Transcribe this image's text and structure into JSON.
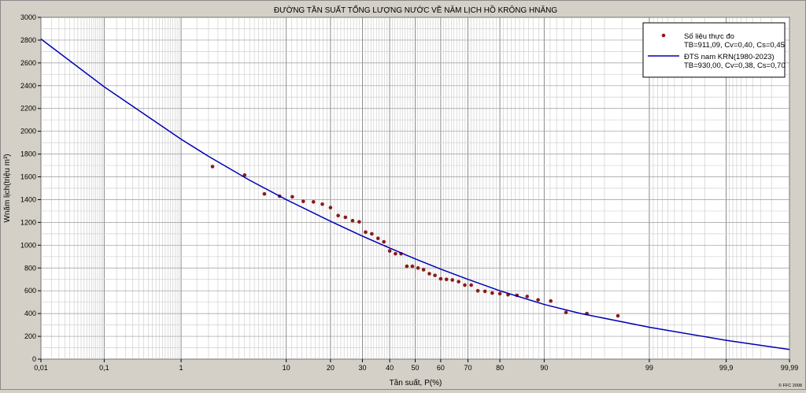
{
  "chart_data": {
    "type": "scatter",
    "title": "ĐƯỜNG TẦN SUẤT TỔNG LƯỢNG NƯỚC VỀ NĂM LỊCH HỒ KRÔNG HNĂNG",
    "xlabel": "Tần suất, P(%)",
    "ylabel": "Wnăm lịch(triệu m³)",
    "x_scale": "probability",
    "xlim": [
      0.01,
      99.99
    ],
    "ylim": [
      0,
      3000
    ],
    "x_tick_labels": [
      "0,01",
      "0,1",
      "1",
      "10",
      "20",
      "30",
      "40",
      "50",
      "60",
      "70",
      "80",
      "90",
      "99",
      "99,9",
      "99,99"
    ],
    "x_tick_values": [
      0.01,
      0.1,
      1,
      10,
      20,
      30,
      40,
      50,
      60,
      70,
      80,
      90,
      99,
      99.9,
      99.99
    ],
    "y_tick_labels": [
      "0",
      "200",
      "400",
      "600",
      "800",
      "1000",
      "1200",
      "1400",
      "1600",
      "1800",
      "2000",
      "2200",
      "2400",
      "2600",
      "2800",
      "3000"
    ],
    "y_tick_values": [
      0,
      200,
      400,
      600,
      800,
      1000,
      1200,
      1400,
      1600,
      1800,
      2000,
      2200,
      2400,
      2600,
      2800,
      3000
    ],
    "grid": true,
    "legend_position": "top-right",
    "copyright": "© FFC 2008",
    "series": [
      {
        "name": "Số liệu thực đo",
        "params": "TB=911,09, Cv=0,40, Cs=0,45",
        "kind": "scatter",
        "color": "#8b1a1a",
        "points": [
          {
            "x": 2.2,
            "y": 1690
          },
          {
            "x": 4.5,
            "y": 1615
          },
          {
            "x": 6.7,
            "y": 1450
          },
          {
            "x": 8.9,
            "y": 1430
          },
          {
            "x": 11.1,
            "y": 1425
          },
          {
            "x": 13.3,
            "y": 1385
          },
          {
            "x": 15.6,
            "y": 1380
          },
          {
            "x": 17.8,
            "y": 1360
          },
          {
            "x": 20,
            "y": 1330
          },
          {
            "x": 22.2,
            "y": 1260
          },
          {
            "x": 24.4,
            "y": 1245
          },
          {
            "x": 26.7,
            "y": 1215
          },
          {
            "x": 28.9,
            "y": 1205
          },
          {
            "x": 31.1,
            "y": 1115
          },
          {
            "x": 33.3,
            "y": 1100
          },
          {
            "x": 35.6,
            "y": 1060
          },
          {
            "x": 37.8,
            "y": 1030
          },
          {
            "x": 40,
            "y": 950
          },
          {
            "x": 42.2,
            "y": 925
          },
          {
            "x": 44.4,
            "y": 925
          },
          {
            "x": 46.7,
            "y": 815
          },
          {
            "x": 48.9,
            "y": 815
          },
          {
            "x": 51.1,
            "y": 800
          },
          {
            "x": 53.3,
            "y": 785
          },
          {
            "x": 55.6,
            "y": 750
          },
          {
            "x": 57.8,
            "y": 735
          },
          {
            "x": 60,
            "y": 705
          },
          {
            "x": 62.2,
            "y": 700
          },
          {
            "x": 64.4,
            "y": 695
          },
          {
            "x": 66.7,
            "y": 680
          },
          {
            "x": 68.9,
            "y": 650
          },
          {
            "x": 71.1,
            "y": 650
          },
          {
            "x": 73.3,
            "y": 600
          },
          {
            "x": 75.6,
            "y": 595
          },
          {
            "x": 77.8,
            "y": 580
          },
          {
            "x": 80,
            "y": 575
          },
          {
            "x": 82.2,
            "y": 565
          },
          {
            "x": 84.4,
            "y": 560
          },
          {
            "x": 86.7,
            "y": 550
          },
          {
            "x": 88.9,
            "y": 520
          },
          {
            "x": 91.1,
            "y": 510
          },
          {
            "x": 93.3,
            "y": 410
          },
          {
            "x": 95.6,
            "y": 400
          },
          {
            "x": 97.8,
            "y": 380
          }
        ]
      },
      {
        "name": "ĐTS nam KRN(1980-2023)",
        "params": "TB=930,00, Cv=0,38, Cs=0,70",
        "kind": "line",
        "color": "#0000b4",
        "points": [
          {
            "x": 0.01,
            "y": 2810
          },
          {
            "x": 0.1,
            "y": 2390
          },
          {
            "x": 1,
            "y": 1930
          },
          {
            "x": 2,
            "y": 1780
          },
          {
            "x": 5,
            "y": 1570
          },
          {
            "x": 10,
            "y": 1400
          },
          {
            "x": 20,
            "y": 1210
          },
          {
            "x": 30,
            "y": 1080
          },
          {
            "x": 40,
            "y": 975
          },
          {
            "x": 50,
            "y": 880
          },
          {
            "x": 60,
            "y": 790
          },
          {
            "x": 70,
            "y": 700
          },
          {
            "x": 80,
            "y": 600
          },
          {
            "x": 90,
            "y": 480
          },
          {
            "x": 95,
            "y": 400
          },
          {
            "x": 99,
            "y": 280
          },
          {
            "x": 99.9,
            "y": 165
          },
          {
            "x": 99.99,
            "y": 85
          }
        ]
      }
    ]
  }
}
